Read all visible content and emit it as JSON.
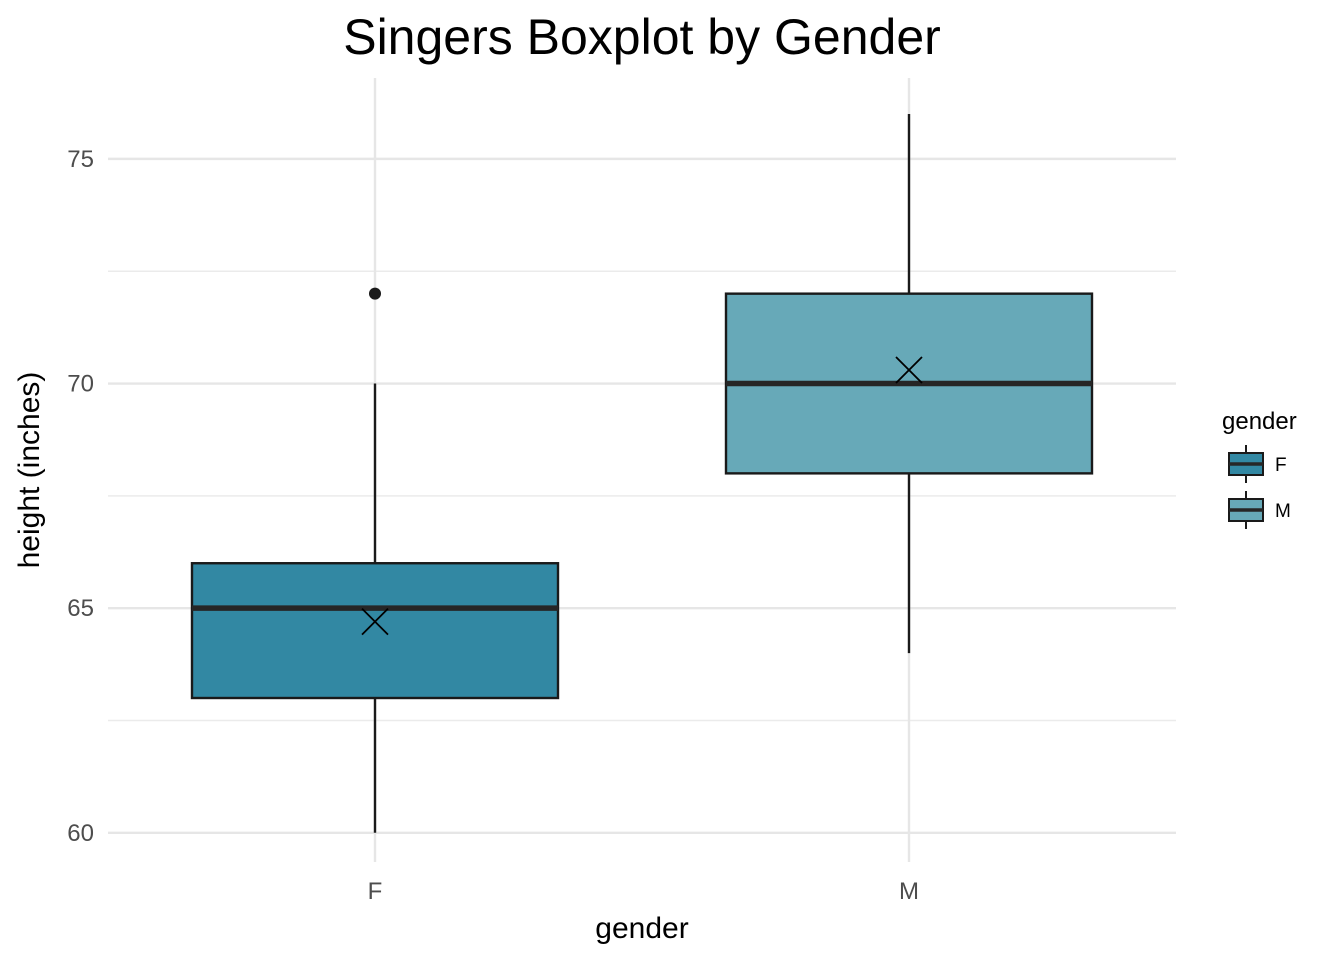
{
  "chart_data": {
    "type": "boxplot",
    "title": "Singers Boxplot by Gender",
    "xlabel": "gender",
    "ylabel": "height (inches)",
    "categories": [
      "F",
      "M"
    ],
    "ylim": [
      59.35,
      76.8
    ],
    "yticks": [
      60,
      65,
      70,
      75
    ],
    "grid": true,
    "legend": {
      "title": "gender",
      "position": "right",
      "entries": [
        "F",
        "M"
      ]
    },
    "series": [
      {
        "category": "F",
        "whisker_low": 60,
        "q1": 63,
        "median": 65,
        "q3": 66,
        "whisker_high": 70,
        "outliers": [
          72
        ],
        "mean": 64.7,
        "fill": "#3288a3"
      },
      {
        "category": "M",
        "whisker_low": 64,
        "q1": 68,
        "median": 70,
        "q3": 72,
        "whisker_high": 76,
        "outliers": [],
        "mean": 70.3,
        "fill": "#67a9b8"
      }
    ]
  }
}
